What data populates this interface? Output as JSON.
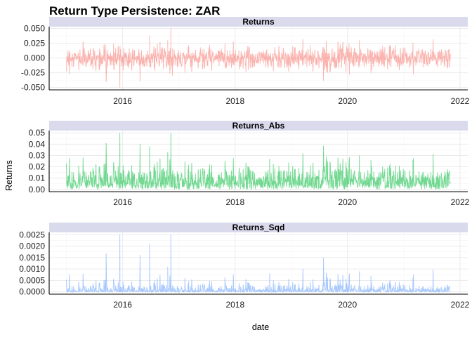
{
  "chart_data": {
    "type": "line",
    "title": "Return Type Persistence: ZAR",
    "xlabel": "date",
    "ylabel": "Returns",
    "x_range": [
      "2015-01-01",
      "2021-10-31"
    ],
    "x_ticks": [
      "2016",
      "2018",
      "2020",
      "2022"
    ],
    "grid": true,
    "facet_strip_color": "#d9dbed",
    "panels": [
      {
        "strip_label": "Returns",
        "color": "#f8766d",
        "ylim": [
          -0.054,
          0.053
        ],
        "y_ticks": [
          -0.05,
          -0.025,
          0.0,
          0.025,
          0.05
        ],
        "y_tick_labels": [
          "-0.050",
          "-0.025",
          "0.000",
          "0.025",
          "0.050"
        ],
        "typical_abs": 0.0085,
        "peaks": [
          {
            "date": "2015-12-14",
            "value": -0.05
          },
          {
            "date": "2016-06-24",
            "value": 0.038
          },
          {
            "date": "2016-11-09",
            "value": 0.05
          },
          {
            "date": "2016-11-20",
            "value": -0.03
          },
          {
            "date": "2016-10-20",
            "value": 0.03
          },
          {
            "date": "2020-03-18",
            "value": 0.03
          },
          {
            "date": "2020-06-01",
            "value": -0.025
          },
          {
            "date": "2021-03-01",
            "value": 0.026
          }
        ]
      },
      {
        "strip_label": "Returns_Abs",
        "color": "#00ba38",
        "ylim": [
          -0.002,
          0.052
        ],
        "y_ticks": [
          0.0,
          0.01,
          0.02,
          0.03,
          0.04,
          0.05
        ],
        "y_tick_labels": [
          "0.00",
          "0.01",
          "0.02",
          "0.03",
          "0.04",
          "0.05"
        ],
        "typical_abs": 0.0085,
        "peaks": [
          {
            "date": "2015-12-14",
            "value": 0.05
          },
          {
            "date": "2016-06-24",
            "value": 0.038
          },
          {
            "date": "2016-11-09",
            "value": 0.05
          },
          {
            "date": "2016-10-20",
            "value": 0.033
          },
          {
            "date": "2018-08-13",
            "value": 0.027
          },
          {
            "date": "2020-03-18",
            "value": 0.03
          },
          {
            "date": "2020-06-01",
            "value": 0.026
          },
          {
            "date": "2021-03-01",
            "value": 0.026
          }
        ]
      },
      {
        "strip_label": "Returns_Sqd",
        "color": "#619cff",
        "ylim": [
          -0.0001,
          0.0026
        ],
        "y_ticks": [
          0.0,
          0.0005,
          0.001,
          0.0015,
          0.002,
          0.0025
        ],
        "y_tick_labels": [
          "0.0000",
          "0.0005",
          "0.0010",
          "0.0015",
          "0.0020",
          "0.0025"
        ],
        "typical_abs": 0.0085,
        "peaks": [
          {
            "date": "2015-12-14",
            "value": 0.0025
          },
          {
            "date": "2016-06-24",
            "value": 0.0021
          },
          {
            "date": "2016-11-09",
            "value": 0.0025
          },
          {
            "date": "2016-10-20",
            "value": 0.0011
          },
          {
            "date": "2018-08-13",
            "value": 0.0008
          },
          {
            "date": "2020-03-18",
            "value": 0.0009
          },
          {
            "date": "2020-06-01",
            "value": 0.0007
          },
          {
            "date": "2021-03-01",
            "value": 0.0006
          }
        ]
      }
    ]
  }
}
